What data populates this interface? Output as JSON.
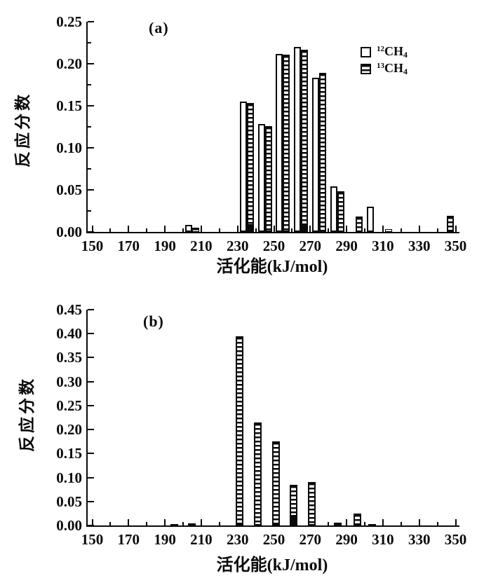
{
  "figure": {
    "background": "#ffffff",
    "ink": "#0a0a0a"
  },
  "chart_data": [
    {
      "type": "bar",
      "title": "(a)",
      "xlabel": "活化能(kJ/mol)",
      "ylabel": "反应分数",
      "xlim": [
        150,
        350
      ],
      "ylim": [
        0,
        0.25
      ],
      "grid": false,
      "legend_position": "upper right",
      "x_tick_labels": [
        "150",
        "170",
        "190",
        "210",
        "230",
        "250",
        "270",
        "290",
        "310",
        "330",
        "350"
      ],
      "y_tick_labels": [
        "0.00",
        "0.05",
        "0.10",
        "0.15",
        "0.20",
        "0.25"
      ],
      "legend": [
        {
          "sup": "12",
          "body": "CH",
          "sub": "4",
          "series": "12CH4",
          "swatch": "open"
        },
        {
          "sup": "13",
          "body": "CH",
          "sub": "4",
          "series": "13CH4",
          "swatch": "hatched"
        }
      ],
      "bars": [
        {
          "x": 205,
          "open": 0.008,
          "hatched": 0.005
        },
        {
          "x": 235,
          "open": 0.155,
          "hatched": 0.153,
          "black": 0.009
        },
        {
          "x": 245,
          "open": 0.128,
          "hatched": 0.126
        },
        {
          "x": 255,
          "open": 0.212,
          "hatched": 0.211
        },
        {
          "x": 265,
          "open": 0.22,
          "hatched": 0.217,
          "black": 0.009
        },
        {
          "x": 275,
          "open": 0.183,
          "hatched": 0.189
        },
        {
          "x": 285,
          "open": 0.054,
          "hatched": 0.048
        },
        {
          "x": 295,
          "hatched": 0.018
        },
        {
          "x": 305,
          "open": 0.03
        },
        {
          "x": 315,
          "open": 0.003
        },
        {
          "x": 345,
          "hatched": 0.019
        }
      ]
    },
    {
      "type": "bar",
      "title": "(b)",
      "xlabel": "活化能(kJ/mol)",
      "ylabel": "反应分数",
      "xlim": [
        150,
        350
      ],
      "ylim": [
        0,
        0.45
      ],
      "grid": false,
      "legend_position": "none",
      "x_tick_labels": [
        "150",
        "170",
        "190",
        "210",
        "230",
        "250",
        "270",
        "290",
        "310",
        "330",
        "350"
      ],
      "y_tick_labels": [
        "0.00",
        "0.05",
        "0.10",
        "0.15",
        "0.20",
        "0.25",
        "0.30",
        "0.35",
        "0.40",
        "0.45"
      ],
      "legend": [],
      "bars": [
        {
          "x": 195,
          "black": 0.002
        },
        {
          "x": 205,
          "hatched": 0.005
        },
        {
          "x": 231,
          "hatched": 0.395
        },
        {
          "x": 241,
          "hatched": 0.215
        },
        {
          "x": 251,
          "hatched": 0.176
        },
        {
          "x": 261,
          "hatched": 0.085,
          "black": 0.022
        },
        {
          "x": 271,
          "hatched": 0.09
        },
        {
          "x": 285,
          "black": 0.006
        },
        {
          "x": 296,
          "hatched": 0.025
        },
        {
          "x": 304,
          "black": 0.003
        }
      ]
    }
  ]
}
